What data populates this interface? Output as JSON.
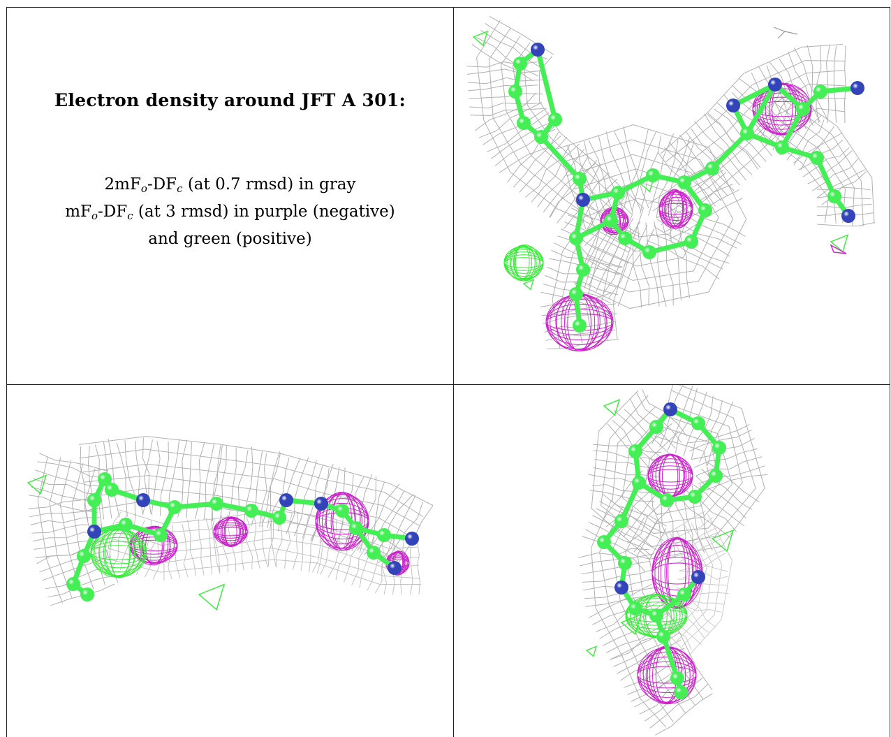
{
  "title": "Electron density around JFT A 301:",
  "legend": {
    "line1": {
      "pre": "2mF",
      "sub1": "o",
      "mid": "-DF",
      "sub2": "c",
      "post": " (at 0.7 rmsd) in gray"
    },
    "line2": {
      "pre": "mF",
      "sub1": "o",
      "mid": "-DF",
      "sub2": "c",
      "post": " (at 3 rmsd) in purple (negative)"
    },
    "line3": "and green (positive)"
  },
  "colors": {
    "mesh_gray": "#a9a9a9",
    "negative_purple": "#cc22cc",
    "positive_green": "#33ee33",
    "carbon_green": "#44ee55",
    "nitrogen_blue": "#3344bb"
  },
  "panels": [
    {
      "view": "top-right"
    },
    {
      "view": "bottom-left"
    },
    {
      "view": "bottom-right"
    }
  ]
}
